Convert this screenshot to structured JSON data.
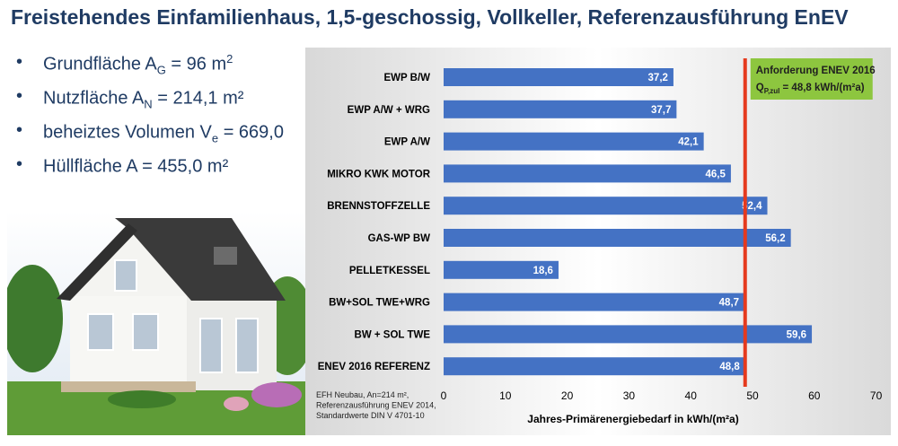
{
  "title": "Freistehendes Einfamilienhaus, 1,5-geschossig, Vollkeller, Referenzausführung EnEV",
  "bullets": [
    {
      "text": "Grundfläche A",
      "sub": "G",
      "rest": " = 96 m",
      "sup": "2"
    },
    {
      "text": "Nutzfläche A",
      "sub": "N",
      "rest": " = 214,1 m²",
      "sup": ""
    },
    {
      "text": "beheiztes Volumen V",
      "sub": "e",
      "rest": " = 669,0",
      "sup": ""
    },
    {
      "text": "Hüllfläche A = 455,0 m²",
      "sub": "",
      "rest": "",
      "sup": ""
    }
  ],
  "bullet_symbol": "•",
  "chart_data": {
    "type": "bar",
    "orientation": "horizontal",
    "categories": [
      "EWP B/W",
      "EWP A/W + WRG",
      "EWP A/W",
      "MIKRO KWK MOTOR",
      "BRENNSTOFFZELLE",
      "GAS-WP BW",
      "PELLETKESSEL",
      "BW+SOL TWE+WRG",
      "BW + SOL TWE",
      "ENEV 2016 REFERENZ"
    ],
    "values": [
      37.2,
      37.7,
      42.1,
      46.5,
      52.4,
      56.2,
      18.6,
      48.7,
      59.6,
      48.8
    ],
    "value_labels": [
      "37,2",
      "37,7",
      "42,1",
      "46,5",
      "52,4",
      "56,2",
      "18,6",
      "48,7",
      "59,6",
      "48,8"
    ],
    "xlabel": "Jahres-Primärenergiebedarf in kWh/(m²a)",
    "ylabel": "",
    "xlim": [
      0,
      70
    ],
    "xticks": [
      0,
      10,
      20,
      30,
      40,
      50,
      60,
      70
    ],
    "bar_color": "#4472c4",
    "reference_line": {
      "value": 48.8,
      "color": "#e53a1e",
      "label_line1": "Anforderung ENEV 2016",
      "label_line2_main": "Q",
      "label_line2_sub": "P,zul",
      "label_line2_rest": " = 48,8 kWh/(m²a)",
      "box_color": "#8dc63f"
    },
    "footnote": [
      "EFH Neubau, An=214 m²,",
      "Referenzausführung ENEV 2014,",
      "Standardwerte DIN V 4701-10"
    ]
  }
}
